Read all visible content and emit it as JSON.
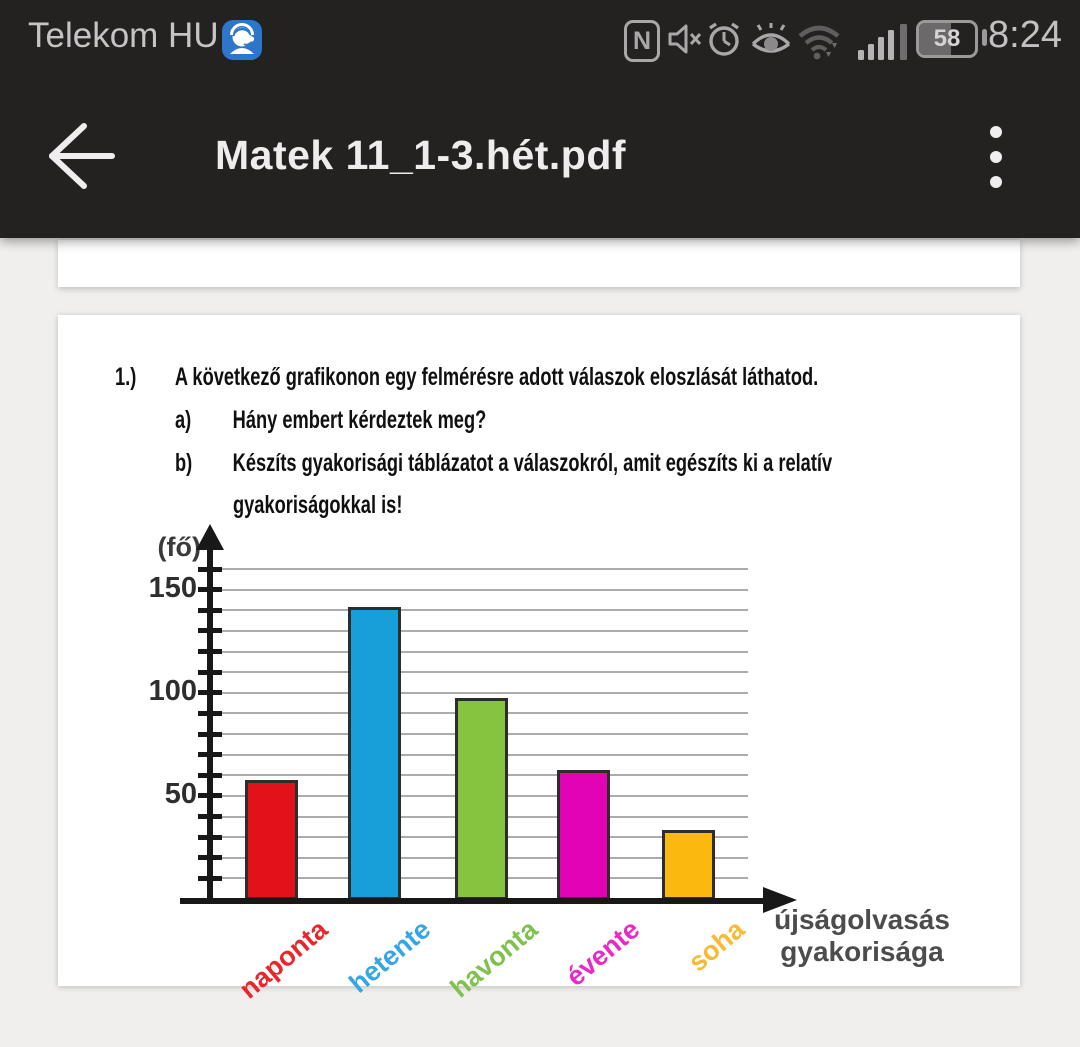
{
  "status_bar": {
    "carrier": "Telekom HU",
    "time": "8:24",
    "battery_percent": "58",
    "icons": [
      "support-chat",
      "nfc",
      "mute",
      "alarm",
      "eye-comfort",
      "wifi",
      "signal-strength",
      "battery"
    ]
  },
  "header": {
    "title": "Matek 11_1-3.hét.pdf"
  },
  "document": {
    "problem_number": "1.)",
    "intro": "A következő grafikonon egy felmérésre adott válaszok eloszlását láthatod.",
    "item_a_label": "a)",
    "item_a_text": "Hány embert kérdeztek meg?",
    "item_b_label": "b)",
    "item_b_text_line1": "Készíts gyakorisági táblázatot a válaszokról, amit egészíts ki a relatív",
    "item_b_text_line2": "gyakoriságokkal is!"
  },
  "chart_data": {
    "type": "bar",
    "title": "",
    "categories": [
      "naponta",
      "hetente",
      "havonta",
      "évente",
      "soha"
    ],
    "values": [
      57,
      141,
      97,
      62,
      33
    ],
    "bar_colors": [
      "#e11218",
      "#189fd9",
      "#86c440",
      "#e203b6",
      "#fbb80f"
    ],
    "label_colors": [
      "#e8272c",
      "#36a5e5",
      "#7fc14c",
      "#e929c6",
      "#f9ba33"
    ],
    "ylabel": "(fő)",
    "xlabel": "újságolvasás gyakorisága",
    "xlabel_line1": "újságolvasás",
    "xlabel_line2": "gyakorisága",
    "yticks": [
      50,
      100,
      150
    ],
    "ylim": [
      0,
      165
    ],
    "grid": true,
    "grid_max": 160,
    "grid_step": 10,
    "legend": false
  }
}
